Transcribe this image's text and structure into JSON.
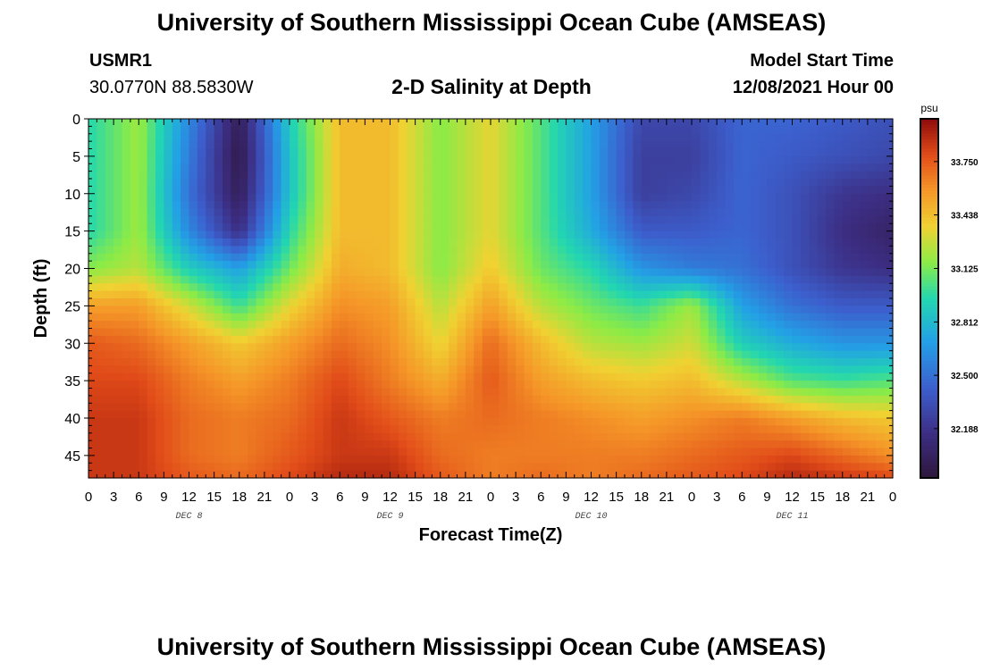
{
  "header": {
    "title": "University of Southern Mississippi Ocean Cube (AMSEAS)",
    "station_id": "USMR1",
    "coords": "30.0770N  88.5830W",
    "plot_title": "2-D Salinity at Depth",
    "model_start_label": "Model Start Time",
    "model_start_value": "12/08/2021 Hour 00"
  },
  "footer": {
    "title": "University of Southern Mississippi Ocean Cube (AMSEAS)"
  },
  "chart_data": {
    "type": "heatmap",
    "title": "2-D Salinity at Depth",
    "xlabel": "Forecast Time(Z)",
    "ylabel": "Depth (ft)",
    "x_range_hours": [
      0,
      96
    ],
    "y_range_ft": [
      0,
      48
    ],
    "x_tick_step_hours": 3,
    "x_tick_labels": [
      "0",
      "3",
      "6",
      "9",
      "12",
      "15",
      "18",
      "21",
      "0",
      "3",
      "6",
      "9",
      "12",
      "15",
      "18",
      "21",
      "0",
      "3",
      "6",
      "9",
      "12",
      "15",
      "18",
      "21",
      "0",
      "3",
      "6",
      "9",
      "12",
      "15",
      "18",
      "21",
      "0"
    ],
    "day_labels": [
      {
        "label": "DEC 8",
        "hour": 12
      },
      {
        "label": "DEC 9",
        "hour": 36
      },
      {
        "label": "DEC 10",
        "hour": 60
      },
      {
        "label": "DEC 11",
        "hour": 84
      }
    ],
    "y_ticks": [
      0,
      5,
      10,
      15,
      20,
      25,
      30,
      35,
      40,
      45
    ],
    "colorbar": {
      "units": "psu",
      "min": 31.9,
      "max": 34.0,
      "tick_labels": [
        "33.750",
        "33.438",
        "33.125",
        "32.812",
        "32.500",
        "32.188"
      ],
      "tick_values": [
        33.75,
        33.438,
        33.125,
        32.812,
        32.5,
        32.188
      ]
    },
    "depths_ft": [
      0,
      5,
      10,
      15,
      20,
      25,
      30,
      35,
      40,
      45,
      48
    ],
    "hours": [
      0,
      6,
      12,
      18,
      24,
      30,
      36,
      42,
      48,
      54,
      60,
      66,
      72,
      78,
      84,
      90,
      96
    ],
    "salinity": [
      [
        32.95,
        33.2,
        32.6,
        32.0,
        32.9,
        33.45,
        33.45,
        33.15,
        33.35,
        33.05,
        32.7,
        32.3,
        32.3,
        32.45,
        32.45,
        32.4,
        32.35
      ],
      [
        32.95,
        33.2,
        32.55,
        31.95,
        32.85,
        33.45,
        33.45,
        33.15,
        33.35,
        33.05,
        32.7,
        32.25,
        32.25,
        32.45,
        32.4,
        32.35,
        32.3
      ],
      [
        32.95,
        33.2,
        32.5,
        32.0,
        32.85,
        33.45,
        33.45,
        33.15,
        33.35,
        33.05,
        32.7,
        32.25,
        32.3,
        32.45,
        32.35,
        32.2,
        32.15
      ],
      [
        32.95,
        33.2,
        32.6,
        32.15,
        32.95,
        33.45,
        33.45,
        33.15,
        33.35,
        33.05,
        32.75,
        32.4,
        32.4,
        32.45,
        32.35,
        32.15,
        32.05
      ],
      [
        33.15,
        33.25,
        32.9,
        32.7,
        33.1,
        33.5,
        33.45,
        33.15,
        33.4,
        33.1,
        32.95,
        32.65,
        32.55,
        32.5,
        32.35,
        32.2,
        32.15
      ],
      [
        33.55,
        33.55,
        33.3,
        33.0,
        33.35,
        33.6,
        33.55,
        33.25,
        33.55,
        33.25,
        33.1,
        33.0,
        33.2,
        32.7,
        32.5,
        32.4,
        32.4
      ],
      [
        33.75,
        33.7,
        33.55,
        33.4,
        33.55,
        33.7,
        33.6,
        33.35,
        33.7,
        33.45,
        33.25,
        33.2,
        33.3,
        32.9,
        32.75,
        32.65,
        32.65
      ],
      [
        33.8,
        33.8,
        33.65,
        33.55,
        33.65,
        33.8,
        33.65,
        33.5,
        33.75,
        33.55,
        33.45,
        33.4,
        33.45,
        33.25,
        33.05,
        33.0,
        33.05
      ],
      [
        33.85,
        33.85,
        33.7,
        33.65,
        33.7,
        33.85,
        33.75,
        33.65,
        33.7,
        33.65,
        33.6,
        33.55,
        33.6,
        33.65,
        33.55,
        33.45,
        33.4
      ],
      [
        33.85,
        33.85,
        33.7,
        33.65,
        33.75,
        33.85,
        33.85,
        33.7,
        33.65,
        33.65,
        33.65,
        33.65,
        33.7,
        33.75,
        33.8,
        33.7,
        33.6
      ],
      [
        33.85,
        33.85,
        33.75,
        33.7,
        33.8,
        33.9,
        33.9,
        33.75,
        33.65,
        33.7,
        33.65,
        33.7,
        33.75,
        33.8,
        33.9,
        33.85,
        33.8
      ]
    ]
  }
}
